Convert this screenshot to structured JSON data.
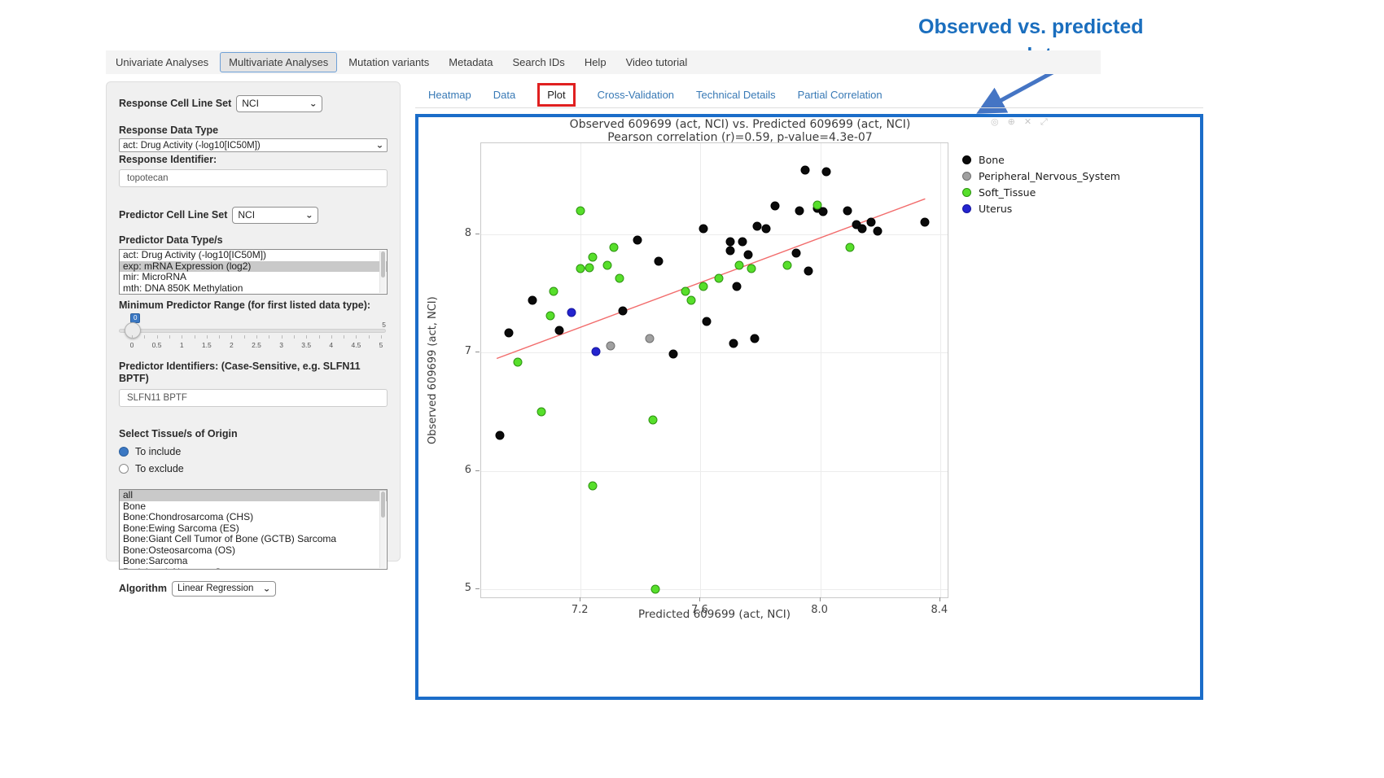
{
  "colors": {
    "container_border": "#1b6dc9",
    "tab_link": "#3879b5",
    "red_highlight_box": "#e02020",
    "annotation_blue": "#1a6ebe",
    "arrow_blue": "#4575c4",
    "regression_red": "#f26c6c"
  },
  "annotation": {
    "line1": "Observed  vs. predicted",
    "line2": "response plot"
  },
  "top_nav": {
    "items": [
      {
        "label": "Univariate Analyses",
        "active": false
      },
      {
        "label": "Multivariate Analyses",
        "active": true
      },
      {
        "label": "Mutation variants",
        "active": false
      },
      {
        "label": "Metadata",
        "active": false
      },
      {
        "label": "Search IDs",
        "active": false
      },
      {
        "label": "Help",
        "active": false
      },
      {
        "label": "Video tutorial",
        "active": false
      }
    ]
  },
  "sidebar": {
    "response_cell_line_set": {
      "label": "Response Cell Line Set",
      "value": "NCI"
    },
    "response_data_type": {
      "label": "Response Data Type",
      "value": "act: Drug Activity (-log10[IC50M])"
    },
    "response_identifier": {
      "label": "Response Identifier:",
      "value": "topotecan"
    },
    "predictor_cell_line_set": {
      "label": "Predictor Cell Line Set",
      "value": "NCI"
    },
    "predictor_data_types": {
      "label": "Predictor Data Type/s",
      "options": [
        "act: Drug Activity (-log10[IC50M])",
        "exp: mRNA Expression (log2)",
        "mir: MicroRNA",
        "mth: DNA 850K Methylation"
      ],
      "selected": "exp: mRNA Expression (log2)"
    },
    "min_predictor_range": {
      "label": "Minimum Predictor Range (for first listed data type):",
      "value": "0",
      "tick_labels": [
        "0",
        "0.5",
        "1",
        "1.5",
        "2",
        "2.5",
        "3",
        "3.5",
        "4",
        "4.5",
        "5"
      ],
      "max_label": "5"
    },
    "predictor_identifiers": {
      "label": "Predictor Identifiers: (Case-Sensitive, e.g. SLFN11 BPTF)",
      "value": "SLFN11 BPTF"
    },
    "tissue_origin": {
      "label": "Select Tissue/s of Origin",
      "radios": [
        {
          "label": "To include",
          "selected": true
        },
        {
          "label": "To exclude",
          "selected": false
        }
      ]
    },
    "tissue_list": {
      "options": [
        "all",
        "Bone",
        "Bone:Chondrosarcoma (CHS)",
        "Bone:Ewing Sarcoma (ES)",
        "Bone:Giant Cell Tumor of Bone (GCTB) Sarcoma",
        "Bone:Osteosarcoma (OS)",
        "Bone:Sarcoma",
        "Peripheral_Nervous_System"
      ],
      "selected": "all"
    },
    "algorithm": {
      "label": "Algorithm",
      "value": "Linear Regression"
    }
  },
  "plot_tabs": {
    "items": [
      {
        "label": "Heatmap",
        "active": false
      },
      {
        "label": "Data",
        "active": false
      },
      {
        "label": "Plot",
        "active": true
      },
      {
        "label": "Cross-Validation",
        "active": false
      },
      {
        "label": "Technical Details",
        "active": false
      },
      {
        "label": "Partial Correlation",
        "active": false
      }
    ]
  },
  "modebar_icons": [
    {
      "name": "camera-icon",
      "glyph": "◎"
    },
    {
      "name": "zoom-icon",
      "glyph": "⊕"
    },
    {
      "name": "reset-axes-icon",
      "glyph": "✕"
    },
    {
      "name": "autoscale-icon",
      "glyph": "⤢"
    }
  ],
  "chart_data": {
    "type": "scatter",
    "title": "Observed 609699 (act, NCI) vs. Predicted 609699 (act, NCI)",
    "subtitle": "Pearson correlation (r)=0.59, p-value=4.3e-07",
    "xlabel": "Predicted 609699 (act, NCI)",
    "ylabel": "Observed 609699 (act, NCI)",
    "xlim": [
      6.868,
      8.425
    ],
    "ylim": [
      4.93,
      8.77
    ],
    "xticks": [
      7.2,
      7.6,
      8.0,
      8.4
    ],
    "yticks": [
      5,
      6,
      7,
      8
    ],
    "grid": true,
    "legend_position": "right",
    "series": [
      {
        "name": "Bone",
        "color": "#0a0a0a",
        "edge": "#000000",
        "points": [
          [
            6.93,
            6.3
          ],
          [
            6.96,
            7.17
          ],
          [
            7.04,
            7.44
          ],
          [
            7.13,
            7.19
          ],
          [
            7.34,
            7.35
          ],
          [
            7.39,
            7.95
          ],
          [
            7.46,
            7.77
          ],
          [
            7.51,
            6.99
          ],
          [
            7.61,
            8.05
          ],
          [
            7.62,
            7.26
          ],
          [
            7.7,
            7.94
          ],
          [
            7.7,
            7.86
          ],
          [
            7.74,
            7.94
          ],
          [
            7.76,
            7.83
          ],
          [
            7.72,
            7.56
          ],
          [
            7.71,
            7.08
          ],
          [
            7.78,
            7.12
          ],
          [
            7.79,
            8.07
          ],
          [
            7.82,
            8.05
          ],
          [
            7.85,
            8.24
          ],
          [
            7.92,
            7.84
          ],
          [
            7.93,
            8.2
          ],
          [
            7.95,
            8.54
          ],
          [
            7.96,
            7.69
          ],
          [
            7.99,
            8.22
          ],
          [
            8.01,
            8.19
          ],
          [
            8.02,
            8.53
          ],
          [
            8.09,
            8.2
          ],
          [
            8.12,
            8.08
          ],
          [
            8.14,
            8.05
          ],
          [
            8.17,
            8.1
          ],
          [
            8.19,
            8.03
          ],
          [
            8.35,
            8.1
          ]
        ]
      },
      {
        "name": "Peripheral_Nervous_System",
        "color": "#a0a0a0",
        "edge": "#6f6f6f",
        "points": [
          [
            7.3,
            7.06
          ],
          [
            7.43,
            7.12
          ]
        ]
      },
      {
        "name": "Soft_Tissue",
        "color": "#57df2b",
        "edge": "#2d9210",
        "points": [
          [
            6.99,
            6.92
          ],
          [
            7.07,
            6.5
          ],
          [
            7.1,
            7.31
          ],
          [
            7.11,
            7.52
          ],
          [
            7.2,
            8.2
          ],
          [
            7.2,
            7.71
          ],
          [
            7.23,
            7.72
          ],
          [
            7.24,
            7.81
          ],
          [
            7.24,
            5.87
          ],
          [
            7.29,
            7.74
          ],
          [
            7.31,
            7.89
          ],
          [
            7.33,
            7.63
          ],
          [
            7.44,
            6.43
          ],
          [
            7.45,
            5.0
          ],
          [
            7.55,
            7.52
          ],
          [
            7.57,
            7.44
          ],
          [
            7.61,
            7.56
          ],
          [
            7.66,
            7.63
          ],
          [
            7.73,
            7.74
          ],
          [
            7.77,
            7.71
          ],
          [
            7.89,
            7.74
          ],
          [
            7.99,
            8.25
          ],
          [
            8.1,
            7.89
          ]
        ]
      },
      {
        "name": "Uterus",
        "color": "#2424cf",
        "edge": "#15159e",
        "points": [
          [
            7.17,
            7.34
          ],
          [
            7.25,
            7.01
          ]
        ]
      }
    ],
    "regression_line": {
      "x1": 6.92,
      "y1": 6.95,
      "x2": 8.35,
      "y2": 8.3,
      "color": "#f26c6c"
    }
  }
}
